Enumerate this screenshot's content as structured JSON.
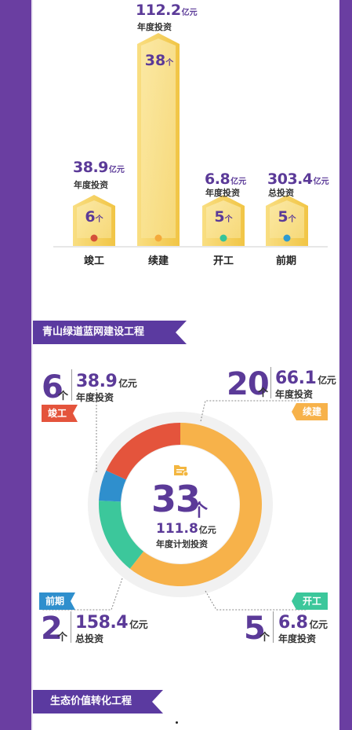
{
  "bar_summary": {
    "bars": [
      {
        "category": "竣工",
        "value": "38.9",
        "unit": "亿元",
        "sub_label": "年度投资",
        "count": "6",
        "count_unit": "个",
        "dot_color": "#d5503a"
      },
      {
        "category": "续建",
        "value": "112.2",
        "unit": "亿元",
        "sub_label": "年度投资",
        "count": "38",
        "count_unit": "个",
        "dot_color": "#f4a93b"
      },
      {
        "category": "开工",
        "value": "6.8",
        "unit": "亿元",
        "sub_label": "年度投资",
        "count": "5",
        "count_unit": "个",
        "dot_color": "#35c49a"
      },
      {
        "category": "前期",
        "value": "303.4",
        "unit": "亿元",
        "sub_label": "总投资",
        "count": "5",
        "count_unit": "个",
        "dot_color": "#2f9bd1"
      }
    ]
  },
  "section1": {
    "title": "青山绿道蓝网建设工程"
  },
  "donut": {
    "center": {
      "count": "33",
      "count_unit": "个",
      "value": "111.8",
      "unit": "亿元",
      "sub_label": "年度计划投资"
    },
    "segments": [
      {
        "label": "竣工",
        "count": "6",
        "count_unit": "个",
        "value": "38.9",
        "unit": "亿元",
        "sub_label": "年度投资",
        "color": "#e4543c"
      },
      {
        "label": "续建",
        "count": "20",
        "count_unit": "个",
        "value": "66.1",
        "unit": "亿元",
        "sub_label": "年度投资",
        "color": "#f7b24a"
      },
      {
        "label": "开工",
        "count": "5",
        "count_unit": "个",
        "value": "6.8",
        "unit": "亿元",
        "sub_label": "年度投资",
        "color": "#3cc79b"
      },
      {
        "label": "前期",
        "count": "2",
        "count_unit": "个",
        "value": "158.4",
        "unit": "亿元",
        "sub_label": "总投资",
        "color": "#2f8fcd"
      }
    ]
  },
  "section2": {
    "title": "生态价值转化工程"
  },
  "colors": {
    "frame": "#6a3ea1",
    "banner": "#5b3aa0",
    "accent_text": "#5b3a98"
  },
  "chart_data": [
    {
      "type": "bar",
      "categories": [
        "竣工",
        "续建",
        "开工",
        "前期"
      ],
      "series": [
        {
          "values": [
            6,
            38,
            5,
            5
          ]
        }
      ],
      "data_labels": [
        "38.9亿元 年度投资",
        "112.2亿元 年度投资",
        "6.8亿元 年度投资",
        "303.4亿元 总投资"
      ]
    },
    {
      "type": "pie",
      "categories": [
        "竣工",
        "续建",
        "开工",
        "前期"
      ],
      "values": [
        6,
        20,
        5,
        2
      ]
    }
  ]
}
